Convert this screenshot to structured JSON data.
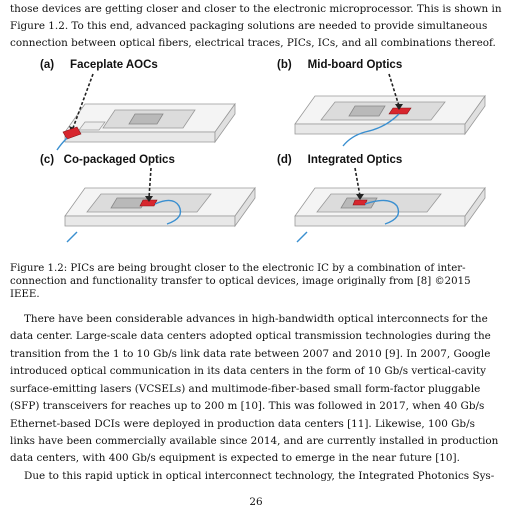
{
  "intro_lines": [
    "those devices are getting closer and closer to the electronic microprocessor.  This is shown in",
    "Figure 1.2.  To this end, advanced packaging solutions are needed to provide simultaneous",
    "connection between optical fibers, electrical traces, PICs, ICs, and all combinations thereof."
  ],
  "figure": {
    "panels": [
      {
        "letter": "(a)",
        "title": "Faceplate AOCs"
      },
      {
        "letter": "(b)",
        "title": "Mid-board Optics"
      },
      {
        "letter": "(c)",
        "title": "Co-packaged Optics"
      },
      {
        "letter": "(d)",
        "title": "Integrated Optics"
      }
    ],
    "colors": {
      "optics": "#d7262e",
      "fiber": "#3a8fd0",
      "board": "#dcdcdc",
      "chip": "#b9b9b9"
    },
    "caption_lines": [
      "Figure 1.2:  PICs are being brought closer to the electronic IC by a combination of inter-",
      "connection and functionality transfer to optical devices, image originally from [8] ©2015",
      "IEEE."
    ]
  },
  "body_lines": [
    "There have been considerable advances in high-bandwidth optical interconnects for the",
    "data center.  Large-scale data centers adopted optical transmission technologies during the",
    "transition from the 1 to 10 Gb/s link data rate between 2007 and 2010 [9].  In 2007, Google",
    "introduced optical communication in its data centers in the form of 10 Gb/s vertical-cavity",
    "surface-emitting lasers (VCSELs) and multimode-fiber-based small form-factor pluggable",
    "(SFP) transceivers for reaches up to 200 m [10].  This was followed in 2017, when 40 Gb/s",
    "Ethernet-based DCIs were deployed in production data centers [11].  Likewise, 100 Gb/s",
    "links have been commercially available since 2014, and are currently installed in production",
    "data centers, with 400 Gb/s equipment is expected to emerge in the near future [10].",
    "Due to this rapid uptick in optical interconnect technology, the Integrated Photonics Sys-"
  ],
  "page_number": "26"
}
